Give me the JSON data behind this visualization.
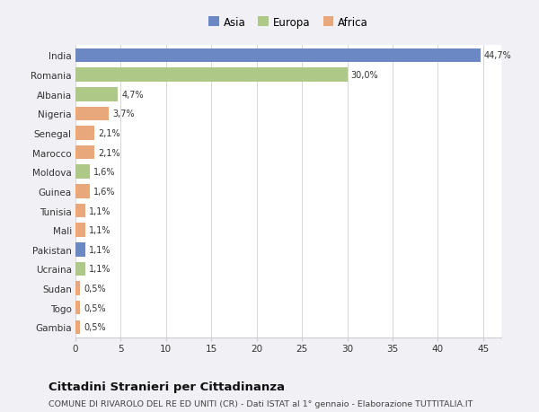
{
  "countries": [
    "India",
    "Romania",
    "Albania",
    "Nigeria",
    "Senegal",
    "Marocco",
    "Moldova",
    "Guinea",
    "Tunisia",
    "Mali",
    "Pakistan",
    "Ucraina",
    "Sudan",
    "Togo",
    "Gambia"
  ],
  "values": [
    44.7,
    30.0,
    4.7,
    3.7,
    2.1,
    2.1,
    1.6,
    1.6,
    1.1,
    1.1,
    1.1,
    1.1,
    0.5,
    0.5,
    0.5
  ],
  "labels": [
    "44,7%",
    "30,0%",
    "4,7%",
    "3,7%",
    "2,1%",
    "2,1%",
    "1,6%",
    "1,6%",
    "1,1%",
    "1,1%",
    "1,1%",
    "1,1%",
    "0,5%",
    "0,5%",
    "0,5%"
  ],
  "continents": [
    "Asia",
    "Europa",
    "Europa",
    "Africa",
    "Africa",
    "Africa",
    "Europa",
    "Africa",
    "Africa",
    "Africa",
    "Asia",
    "Europa",
    "Africa",
    "Africa",
    "Africa"
  ],
  "colors": {
    "Asia": "#6b88c4",
    "Europa": "#aec987",
    "Africa": "#e8a87c"
  },
  "legend_labels": [
    "Asia",
    "Europa",
    "Africa"
  ],
  "legend_colors": [
    "#6b88c4",
    "#aec987",
    "#e8a87c"
  ],
  "title": "Cittadini Stranieri per Cittadinanza",
  "subtitle": "COMUNE DI RIVAROLO DEL RE ED UNITI (CR) - Dati ISTAT al 1° gennaio - Elaborazione TUTTITALIA.IT",
  "xlim": [
    0,
    47
  ],
  "xticks": [
    0,
    5,
    10,
    15,
    20,
    25,
    30,
    35,
    40,
    45
  ],
  "fig_bg_color": "#f0f0f5",
  "plot_bg_color": "#ffffff",
  "bar_height": 0.72
}
